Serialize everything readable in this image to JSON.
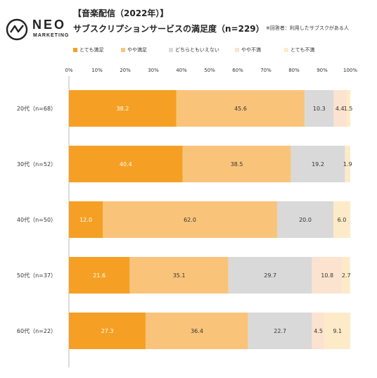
{
  "brand": {
    "name": "NEO",
    "sub": "MARKETING"
  },
  "header": {
    "line1": "【音楽配信（2022年）】",
    "line2": "サブスクリプションサービスの満足度（n=229）",
    "note": "※回答者：利用したサブスクがある人"
  },
  "colors": {
    "very_satisfied": "#F5A024",
    "satisfied": "#F9C47A",
    "neutral": "#D9D9D9",
    "dissatisfied": "#FCE3CF",
    "very_dissatisfied": "#FDEBC8",
    "grid": "#bbbbbb"
  },
  "chart_data": {
    "type": "bar",
    "orientation": "horizontal",
    "stacked": true,
    "xlim": [
      0,
      100
    ],
    "x_ticks": [
      "0%",
      "10%",
      "20%",
      "30%",
      "40%",
      "50%",
      "60%",
      "70%",
      "80%",
      "90%",
      "100%"
    ],
    "categories": [
      "20代（n=68）",
      "30代（n=52）",
      "40代（n=50）",
      "50代（n=37）",
      "60代（n=22）"
    ],
    "series": [
      {
        "name": "とても満足",
        "values": [
          38.2,
          40.4,
          12.0,
          21.6,
          27.3
        ],
        "color": "#F5A024",
        "label_color": "#ffffff"
      },
      {
        "name": "やや満足",
        "values": [
          45.6,
          38.5,
          62.0,
          35.1,
          36.4
        ],
        "color": "#F9C47A",
        "label_color": "#333333"
      },
      {
        "name": "どちらともいえない",
        "values": [
          10.3,
          19.2,
          20.0,
          29.7,
          22.7
        ],
        "color": "#D9D9D9",
        "label_color": "#333333"
      },
      {
        "name": "やや不満",
        "values": [
          4.4,
          0,
          0,
          10.8,
          4.5
        ],
        "color": "#FCE3CF",
        "label_color": "#333333"
      },
      {
        "name": "とても不満",
        "values": [
          1.5,
          1.9,
          6.0,
          2.7,
          9.1
        ],
        "color": "#FDEBC8",
        "label_color": "#333333"
      }
    ],
    "data_labels": [
      [
        "38.2",
        "45.6",
        "10.3",
        "4.4",
        "1.5"
      ],
      [
        "40.4",
        "38.5",
        "19.2",
        "",
        "1.9"
      ],
      [
        "12.0",
        "62.0",
        "20.0",
        "",
        "6.0"
      ],
      [
        "21.6",
        "35.1",
        "29.7",
        "10.8",
        "2.7"
      ],
      [
        "27.3",
        "36.4",
        "22.7",
        "4.5",
        "9.1"
      ]
    ],
    "legend_position": "top",
    "grid": false
  }
}
